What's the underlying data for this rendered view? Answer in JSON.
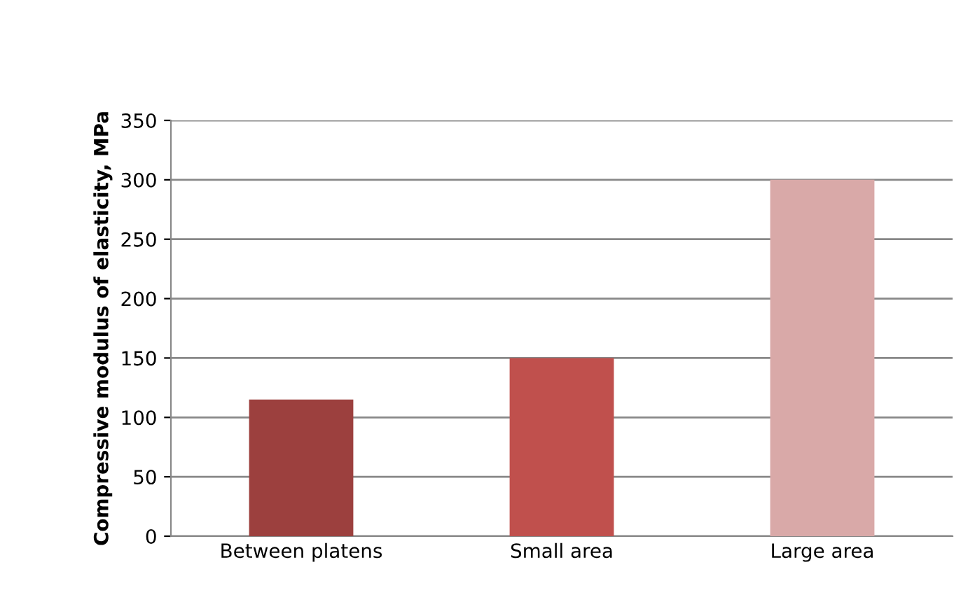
{
  "chart_data": {
    "type": "bar",
    "ylabel": "Compressive modulus of elasticity, MPa",
    "categories": [
      "Between platens",
      "Small area",
      "Large area"
    ],
    "values": [
      115,
      150,
      300
    ],
    "colors": [
      "#9c403e",
      "#c0504d",
      "#d9a9a8"
    ],
    "ylim": [
      0,
      350
    ],
    "yticks": [
      0,
      50,
      100,
      150,
      200,
      250,
      300,
      350
    ],
    "grid": "y"
  }
}
